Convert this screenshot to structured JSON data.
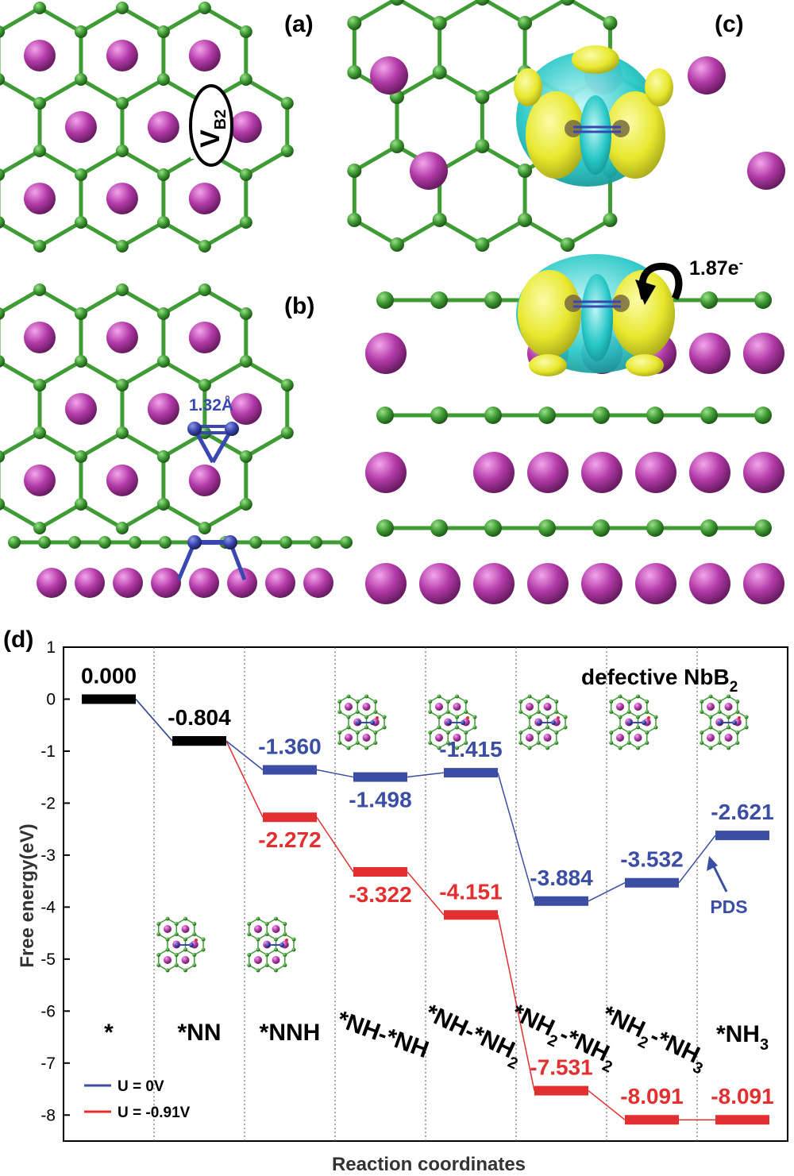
{
  "panels": {
    "a": "(a)",
    "b": "(b)",
    "c": "(c)",
    "d": "(d)"
  },
  "annotations": {
    "vacancy_main": "V",
    "vacancy_sub": "B2",
    "bond_length": "1.32Å",
    "charge_main": "1.87e",
    "charge_sup": "-"
  },
  "colors": {
    "boron": "#3f9b34",
    "niobium": "#b33aa8",
    "nitrogen": "#3a47b0",
    "isosurface_depletion": "#27c7c7",
    "isosurface_accumulation": "#eeee33",
    "u0": "#3b4ea3",
    "u_neg": "#e23030",
    "zero": "#000000"
  },
  "chart_data": {
    "type": "line",
    "title_main": "defective NbB",
    "title_sub": "2",
    "xlabel": "Reaction coordinates",
    "ylabel": "Free energy(eV)",
    "ylim": [
      -8.5,
      1
    ],
    "yticks": [
      "1",
      "0",
      "-1",
      "-2",
      "-3",
      "-4",
      "-5",
      "-6",
      "-7",
      "-8"
    ],
    "categories": [
      {
        "main": "*",
        "parts": []
      },
      {
        "main": "*NN",
        "parts": []
      },
      {
        "main": "*NNH",
        "parts": []
      },
      {
        "main": "*NH-*NH",
        "parts": []
      },
      {
        "main": "*NH-*NH",
        "parts": [
          "2"
        ]
      },
      {
        "main": "*NH",
        "parts": [
          "2",
          "-*NH",
          "2"
        ]
      },
      {
        "main": "*NH",
        "parts": [
          "2",
          "-*NH",
          "3"
        ]
      },
      {
        "main": "*NH",
        "parts": [
          "3"
        ]
      }
    ],
    "series": [
      {
        "name": "U = 0V",
        "values": [
          0.0,
          -0.804,
          -1.36,
          -1.498,
          -1.415,
          -3.884,
          -3.532,
          -2.621
        ],
        "labels": [
          "0.000",
          "-0.804",
          "-1.360",
          "-1.498",
          "-1.415",
          "-3.884",
          "-3.532",
          "-2.621"
        ]
      },
      {
        "name": "U = -0.91V",
        "values": [
          0.0,
          -0.804,
          -2.272,
          -3.322,
          -4.151,
          -7.531,
          -8.091,
          -8.091
        ],
        "labels": [
          "",
          "",
          "-2.272",
          "-3.322",
          "-4.151",
          "-7.531",
          "-8.091",
          "-8.091"
        ]
      }
    ],
    "annotations": [
      {
        "text": "PDS",
        "category_index": 7
      }
    ]
  }
}
